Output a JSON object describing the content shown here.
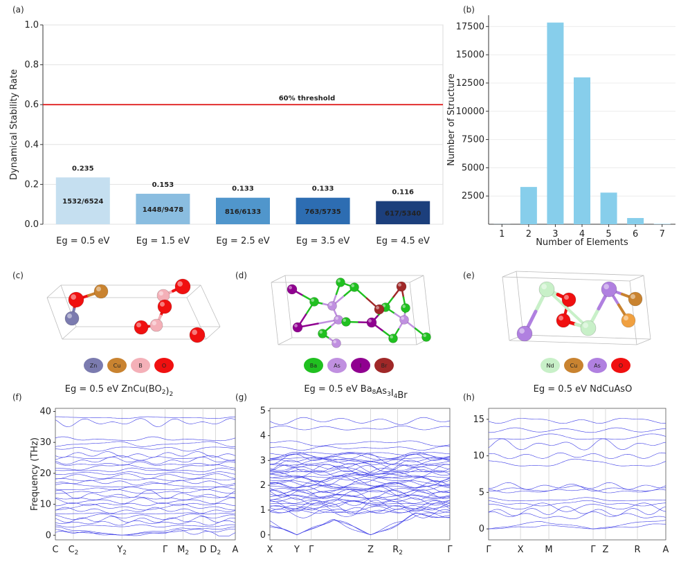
{
  "panel_labels": [
    "(a)",
    "(b)",
    "(c)",
    "(d)",
    "(e)",
    "(f)",
    "(g)",
    "(h)"
  ],
  "chart_data": [
    {
      "id": "a",
      "type": "bar",
      "ylabel": "Dynamical Stability Rate",
      "xlabel": "",
      "ylim": [
        0,
        1.0
      ],
      "yticks": [
        "0.0",
        "0.2",
        "0.4",
        "0.6",
        "0.8",
        "1.0"
      ],
      "categories": [
        "Eg = 0.5 eV",
        "Eg = 1.5 eV",
        "Eg = 2.5 eV",
        "Eg = 3.5 eV",
        "Eg = 4.5 eV"
      ],
      "values": [
        0.235,
        0.153,
        0.133,
        0.133,
        0.116
      ],
      "value_labels": [
        "0.235",
        "0.153",
        "0.133",
        "0.133",
        "0.116"
      ],
      "count_labels": [
        "1532/6524",
        "1448/9478",
        "816/6133",
        "763/5735",
        "617/5340"
      ],
      "colors": [
        "#c5dff0",
        "#8abde0",
        "#5096cc",
        "#2d6db2",
        "#1c3f7c"
      ],
      "threshold": {
        "value": 0.6,
        "label": "60% threshold",
        "color": "#e02020"
      },
      "grid": true
    },
    {
      "id": "b",
      "type": "bar",
      "ylabel": "Number of Structure",
      "xlabel": "Number of Elements",
      "ylim": [
        0,
        18500
      ],
      "yticks": [
        "2500",
        "5000",
        "7500",
        "10000",
        "12500",
        "15000",
        "17500"
      ],
      "categories": [
        "1",
        "2",
        "3",
        "4",
        "5",
        "6",
        "7"
      ],
      "values": [
        10,
        3300,
        17850,
        13000,
        2800,
        550,
        30
      ],
      "color": "#87ceeb",
      "grid": true
    },
    {
      "id": "f",
      "type": "line",
      "ylabel": "Frequency (THz)",
      "yticks": [
        "0",
        "10",
        "20",
        "30",
        "40"
      ],
      "xticks": [
        "C",
        "C₂",
        "Y₂",
        "Γ",
        "M₂",
        "D",
        "D₂",
        "A"
      ],
      "color": "#3a3ae6"
    },
    {
      "id": "g",
      "type": "line",
      "yticks": [
        "0",
        "1",
        "2",
        "3",
        "4",
        "5"
      ],
      "xticks": [
        "X",
        "Y",
        "Γ",
        "Z",
        "R₂",
        "Γ"
      ],
      "color": "#3a3ae6"
    },
    {
      "id": "h",
      "type": "line",
      "yticks": [
        "0",
        "5",
        "10",
        "15"
      ],
      "xticks": [
        "Γ",
        "X",
        "M",
        "Γ",
        "Z",
        "R",
        "A"
      ],
      "color": "#3a3ae6"
    }
  ],
  "structures": [
    {
      "caption_prefix": "Eg = 0.5 eV",
      "formula": "ZnCu(BO",
      "formula_sub": "2",
      "formula_tail": ")",
      "formula_sub2": "2",
      "legend": [
        {
          "label": "Zn",
          "color": "#7b7baf"
        },
        {
          "label": "Cu",
          "color": "#c98330"
        },
        {
          "label": "B",
          "color": "#f4b0b8"
        },
        {
          "label": "O",
          "color": "#f01010"
        }
      ]
    },
    {
      "caption_prefix": "Eg = 0.5 eV",
      "formula_parts": [
        [
          "Ba",
          ""
        ],
        [
          "8",
          "sub"
        ],
        [
          "As",
          ""
        ],
        [
          "3",
          "sub"
        ],
        [
          "I",
          ""
        ],
        [
          "4",
          "sub"
        ],
        [
          "Br",
          ""
        ]
      ],
      "legend": [
        {
          "label": "Ba",
          "color": "#20c020"
        },
        {
          "label": "As",
          "color": "#c090e0"
        },
        {
          "label": "I",
          "color": "#900090"
        },
        {
          "label": "Br",
          "color": "#a02828"
        }
      ]
    },
    {
      "caption_prefix": "Eg = 0.5 eV",
      "formula": "NdCuAsO",
      "legend": [
        {
          "label": "Nd",
          "color": "#c8f0c8"
        },
        {
          "label": "Cu",
          "color": "#c98330"
        },
        {
          "label": "As",
          "color": "#b080e0"
        },
        {
          "label": "O",
          "color": "#f01010"
        }
      ]
    }
  ]
}
